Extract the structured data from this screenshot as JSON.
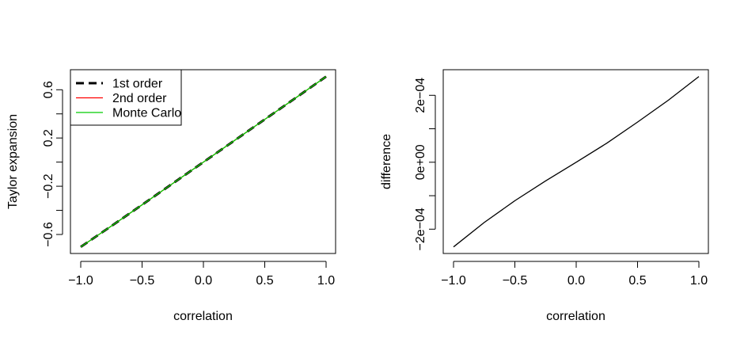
{
  "chart_data": [
    {
      "type": "line",
      "title": "",
      "xlabel": "correlation",
      "ylabel": "Taylor expansion",
      "xlim": [
        -1,
        1
      ],
      "ylim": [
        -0.75,
        0.75
      ],
      "x_ticks": [
        -1.0,
        -0.5,
        0.0,
        0.5,
        1.0
      ],
      "x_tick_labels": [
        "−1.0",
        "−0.5",
        "0.0",
        "0.5",
        "1.0"
      ],
      "y_ticks": [
        -0.6,
        -0.4,
        -0.2,
        0.0,
        0.2,
        0.4,
        0.6
      ],
      "y_tick_labels": [
        "−0.6",
        "",
        "−0.2",
        "",
        "0.2",
        "",
        "0.6"
      ],
      "x": [
        -1,
        -0.75,
        -0.5,
        -0.25,
        0,
        0.25,
        0.5,
        0.75,
        1
      ],
      "series": [
        {
          "name": "1st order",
          "color": "#000000",
          "dash": true,
          "values": [
            -0.703,
            -0.53,
            -0.354,
            -0.177,
            0,
            0.177,
            0.354,
            0.531,
            0.709
          ]
        },
        {
          "name": "2nd order",
          "color": "#ff0000",
          "dash": false,
          "values": [
            -0.703,
            -0.53,
            -0.354,
            -0.177,
            0,
            0.177,
            0.354,
            0.531,
            0.709
          ]
        },
        {
          "name": "Monte Carlo",
          "color": "#00cc00",
          "dash": false,
          "values": [
            -0.703,
            -0.53,
            -0.354,
            -0.177,
            0,
            0.177,
            0.354,
            0.531,
            0.709
          ]
        }
      ],
      "legend_position": "top-left",
      "grid": false
    },
    {
      "type": "line",
      "title": "",
      "xlabel": "correlation",
      "ylabel": "difference",
      "xlim": [
        -1,
        1
      ],
      "ylim": [
        -0.00028,
        0.00028
      ],
      "x_ticks": [
        -1.0,
        -0.5,
        0.0,
        0.5,
        1.0
      ],
      "x_tick_labels": [
        "−1.0",
        "−0.5",
        "0.0",
        "0.5",
        "1.0"
      ],
      "y_ticks": [
        -0.0002,
        -0.0001,
        0,
        0.0001,
        0.0002
      ],
      "y_tick_labels": [
        "−2e−04",
        "",
        "0e+00",
        "",
        "2e−04"
      ],
      "x": [
        -1,
        -0.75,
        -0.5,
        -0.25,
        0,
        0.25,
        0.5,
        0.75,
        1
      ],
      "series": [
        {
          "name": "difference",
          "color": "#000000",
          "dash": false,
          "values": [
            -0.000253,
            -0.00018,
            -0.000115,
            -5.6e-05,
            0,
            5.7e-05,
            0.00012,
            0.000185,
            0.000256
          ]
        }
      ],
      "grid": false
    }
  ]
}
